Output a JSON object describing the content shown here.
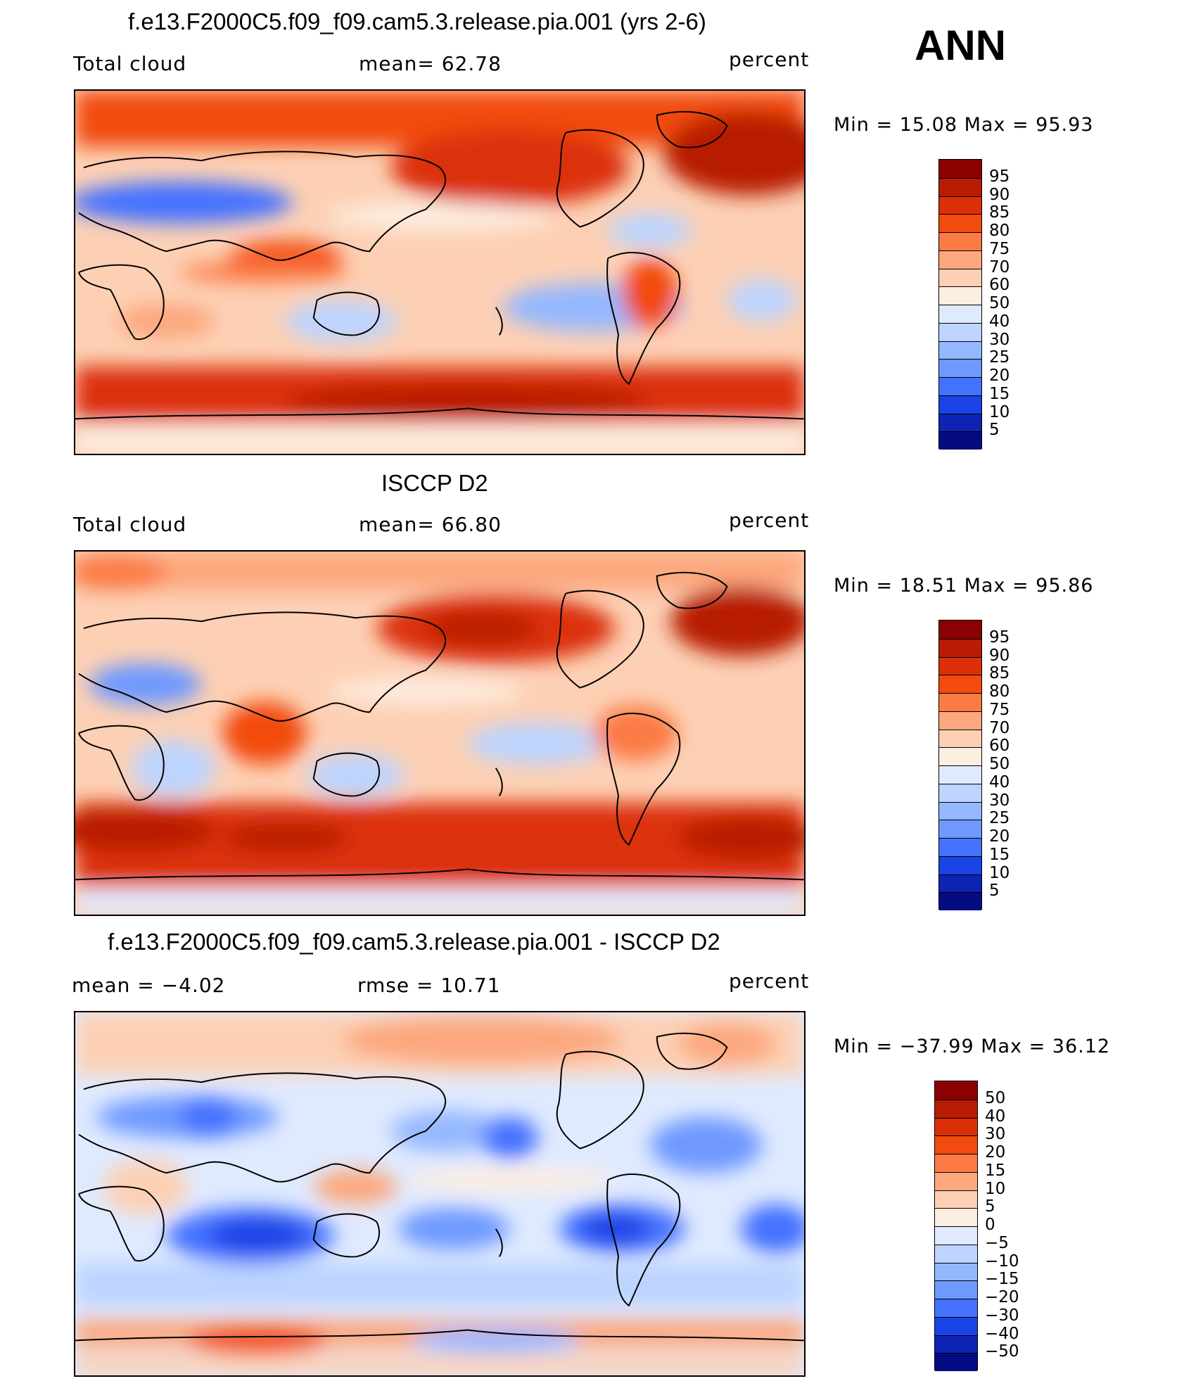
{
  "season": "ANN",
  "panels": [
    {
      "title": "f.e13.F2000C5.f09_f09.cam5.3.release.pia.001 (yrs 2-6)",
      "left_label": "Total cloud",
      "mid_label": "mean=   62.78",
      "right_label": "percent",
      "minmax": "Min =   15.08  Max =   95.93",
      "colorbar_ticks": [
        "95",
        "90",
        "85",
        "80",
        "75",
        "70",
        "60",
        "50",
        "40",
        "30",
        "25",
        "20",
        "15",
        "10",
        "5"
      ],
      "colorbar_colors": [
        "#8b0000",
        "#b81c05",
        "#db3007",
        "#f24b10",
        "#fb7a45",
        "#fca77d",
        "#fdd0b4",
        "#fdeee2",
        "#dfeaff",
        "#bcd4ff",
        "#94b8ff",
        "#6e99ff",
        "#4472ff",
        "#1a43e6",
        "#0c23b4",
        "#050b80"
      ]
    },
    {
      "title": "ISCCP D2",
      "left_label": "Total cloud",
      "mid_label": "mean=   66.80",
      "right_label": "percent",
      "minmax": "Min =   18.51  Max =   95.86",
      "colorbar_ticks": [
        "95",
        "90",
        "85",
        "80",
        "75",
        "70",
        "60",
        "50",
        "40",
        "30",
        "25",
        "20",
        "15",
        "10",
        "5"
      ],
      "colorbar_colors": [
        "#8b0000",
        "#b81c05",
        "#db3007",
        "#f24b10",
        "#fb7a45",
        "#fca77d",
        "#fdd0b4",
        "#fdeee2",
        "#dfeaff",
        "#bcd4ff",
        "#94b8ff",
        "#6e99ff",
        "#4472ff",
        "#1a43e6",
        "#0c23b4",
        "#050b80"
      ]
    },
    {
      "title": "f.e13.F2000C5.f09_f09.cam5.3.release.pia.001 - ISCCP D2",
      "left_label": "mean =   −4.02",
      "mid_label": "rmse =   10.71",
      "right_label": "percent",
      "minmax": "Min = −37.99  Max =   36.12",
      "colorbar_ticks": [
        "50",
        "40",
        "30",
        "20",
        "15",
        "10",
        "5",
        "0",
        "−5",
        "−10",
        "−15",
        "−20",
        "−30",
        "−40",
        "−50"
      ],
      "colorbar_colors": [
        "#8b0000",
        "#b81c05",
        "#db3007",
        "#f24b10",
        "#fb7a45",
        "#fca77d",
        "#fdd0b4",
        "#fdeee2",
        "#dfeaff",
        "#bcd4ff",
        "#94b8ff",
        "#6e99ff",
        "#4472ff",
        "#1a43e6",
        "#0c23b4",
        "#050b80"
      ]
    }
  ]
}
